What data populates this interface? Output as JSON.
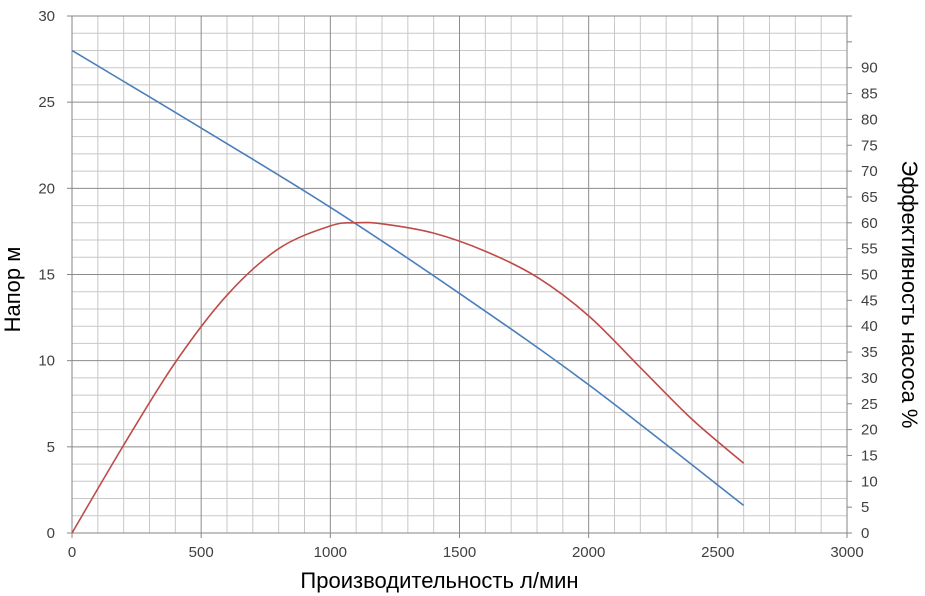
{
  "chart_data": {
    "type": "line",
    "xlabel": "Производительность л/мин",
    "ylabel": "Напор м",
    "y2label": "Эффективность насоса %",
    "xlim": [
      0,
      3000
    ],
    "ylim": [
      0,
      30
    ],
    "y2lim": [
      0,
      100
    ],
    "x_ticks": [
      0,
      500,
      1000,
      1500,
      2000,
      2500,
      3000
    ],
    "y_ticks": [
      0,
      5,
      10,
      15,
      20,
      25,
      30
    ],
    "y2_ticks": [
      0,
      5,
      10,
      15,
      20,
      25,
      30,
      35,
      40,
      45,
      50,
      55,
      60,
      65,
      70,
      75,
      80,
      85,
      90
    ],
    "grid": true,
    "series": [
      {
        "axis": "left",
        "color": "#4a7ebb",
        "x": [
          0,
          500,
          1000,
          1500,
          2000,
          2600
        ],
        "y": [
          28.0,
          23.5,
          18.9,
          13.9,
          8.6,
          1.6
        ]
      },
      {
        "axis": "right",
        "color": "#be4b48",
        "x": [
          0,
          200,
          400,
          600,
          800,
          1000,
          1100,
          1200,
          1400,
          1600,
          1800,
          2000,
          2200,
          2400,
          2600
        ],
        "y": [
          0,
          17,
          33,
          46,
          55,
          59.4,
          60,
          59.8,
          58,
          54.5,
          49.5,
          42,
          32,
          22,
          13.5
        ]
      }
    ]
  }
}
